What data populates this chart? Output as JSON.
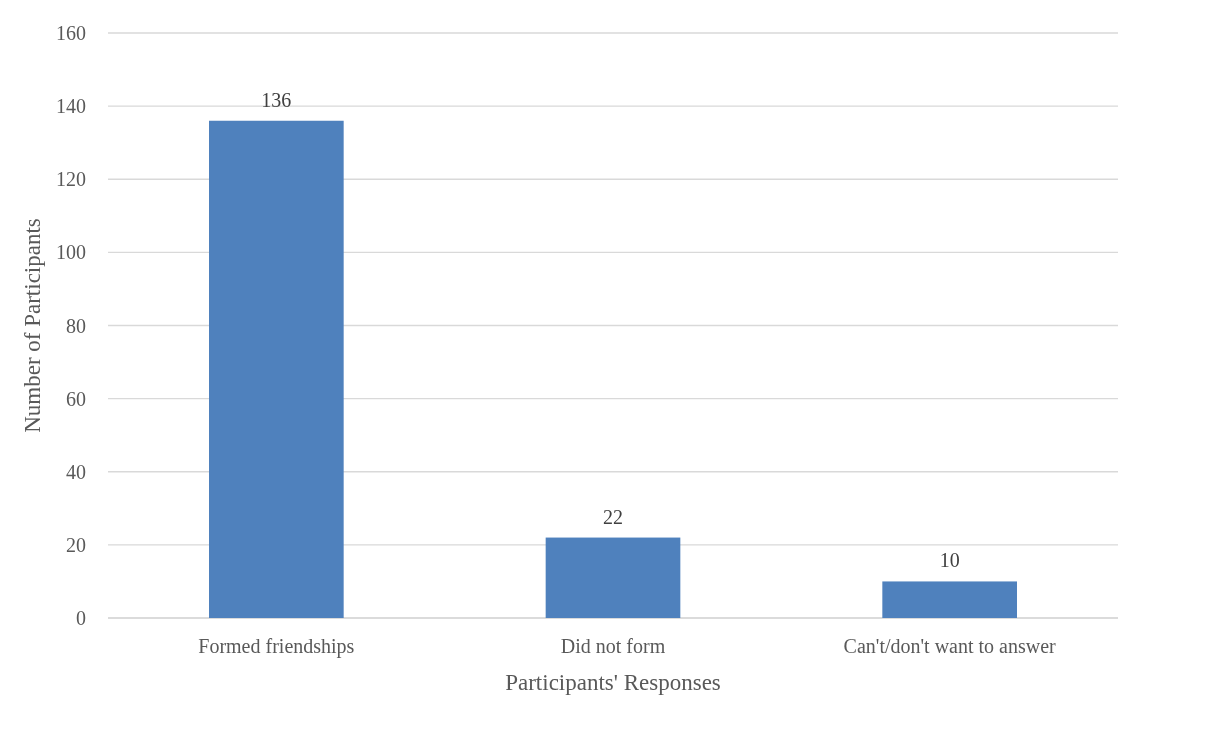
{
  "chart_data": {
    "type": "bar",
    "xlabel": "Participants' Responses",
    "ylabel": "Number of Participants",
    "categories": [
      "Formed friendships",
      "Did not form",
      "Can't/don't want to answer"
    ],
    "values": [
      136,
      22,
      10
    ],
    "color": "#4f81bd",
    "ylim": [
      0,
      160
    ],
    "yticks": [
      0,
      20,
      40,
      60,
      80,
      100,
      120,
      140,
      160
    ],
    "grid": "y",
    "data_labels": true
  }
}
